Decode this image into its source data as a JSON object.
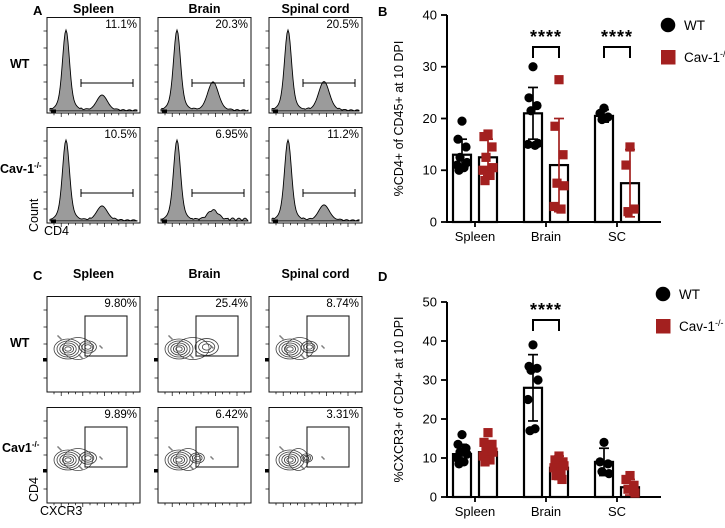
{
  "colors": {
    "wt": "#000000",
    "cav1": "#A3201F",
    "hist_fill": "#9b9b9b",
    "contour_line": "#3c3c3c"
  },
  "panel_a": {
    "label": "A",
    "col_headers": [
      "Spleen",
      "Brain",
      "Spinal cord"
    ],
    "rows": [
      {
        "name": "WT",
        "sup": "",
        "percent": [
          "11.1%",
          "20.3%",
          "20.5%"
        ]
      },
      {
        "name": "Cav-1",
        "sup": "-/-",
        "percent": [
          "10.5%",
          "6.95%",
          "11.2%"
        ]
      }
    ],
    "ylabel": "Count",
    "xlabel": "CD4"
  },
  "panel_c": {
    "label": "C",
    "col_headers": [
      "Spleen",
      "Brain",
      "Spinal cord"
    ],
    "rows": [
      {
        "name": "WT",
        "sup": "",
        "percent": [
          "9.80%",
          "25.4%",
          "8.74%"
        ]
      },
      {
        "name": "Cav1",
        "sup": "-/-",
        "percent": [
          "9.89%",
          "6.42%",
          "3.31%"
        ]
      }
    ],
    "ylabel": "CD4",
    "xlabel": "CXCR3"
  },
  "chart_data": [
    {
      "id": "B",
      "panel_label": "B",
      "type": "bar",
      "title": "",
      "xlabel": "",
      "ylabel": "%CD4+ of CD45+ at 10 DPI",
      "ylim": [
        0,
        40
      ],
      "yticks": [
        0,
        10,
        20,
        30,
        40
      ],
      "categories": [
        "Spleen",
        "Brain",
        "SC"
      ],
      "legend": [
        {
          "label": "WT",
          "sup": ""
        },
        {
          "label": "Cav-1",
          "sup": "-/-"
        }
      ],
      "series": [
        {
          "name": "WT",
          "marker": "circle",
          "color": "#000000",
          "means": [
            13,
            21,
            20.5
          ],
          "sd": [
            3,
            5,
            1.2
          ],
          "points": [
            [
              19.5,
              16,
              14.5,
              12.5,
              11.5,
              11,
              10.5,
              10
            ],
            [
              30,
              24,
              22.5,
              21.5,
              15.2,
              15,
              14.8
            ],
            [
              22,
              21,
              20.3,
              19.8
            ]
          ]
        },
        {
          "name": "Cav-1-/-",
          "marker": "square",
          "color": "#A3201F",
          "means": [
            12.5,
            11,
            7.5
          ],
          "sd": [
            3.5,
            9,
            6.5
          ],
          "points": [
            [
              17,
              16.5,
              14.5,
              12.5,
              10.5,
              10,
              9,
              8
            ],
            [
              27.5,
              18.5,
              13,
              7.5,
              7,
              3,
              2.5
            ],
            [
              14.5,
              11,
              2.5,
              2
            ]
          ]
        }
      ],
      "significance": [
        {
          "category": "Brain",
          "label": "****"
        },
        {
          "category": "SC",
          "label": "****"
        }
      ]
    },
    {
      "id": "D",
      "panel_label": "D",
      "type": "bar",
      "title": "",
      "xlabel": "",
      "ylabel": "%CXCR3+ of CD4+ at 10 DPI",
      "ylim": [
        0,
        50
      ],
      "yticks": [
        0,
        10,
        20,
        30,
        40,
        50
      ],
      "categories": [
        "Spleen",
        "Brain",
        "SC"
      ],
      "legend": [
        {
          "label": "WT",
          "sup": ""
        },
        {
          "label": "Cav-1",
          "sup": "-/-"
        }
      ],
      "series": [
        {
          "name": "WT",
          "marker": "circle",
          "color": "#000000",
          "means": [
            11,
            28,
            9
          ],
          "sd": [
            2.5,
            8.5,
            3.5
          ],
          "points": [
            [
              16,
              13.5,
              12.5,
              11.5,
              11,
              10,
              9,
              8.5
            ],
            [
              39,
              33.5,
              33,
              32.5,
              30,
              25,
              17.5,
              17
            ],
            [
              14,
              9,
              8.5,
              6.5,
              6
            ]
          ]
        },
        {
          "name": "Cav-1-/-",
          "marker": "square",
          "color": "#A3201F",
          "means": [
            11.5,
            7.5,
            2.5
          ],
          "sd": [
            2.8,
            3,
            2
          ],
          "points": [
            [
              16.5,
              14,
              13.5,
              12.5,
              11.5,
              10.5,
              9.5,
              9
            ],
            [
              10.5,
              9.5,
              9,
              8.5,
              8,
              7.5,
              6.5,
              5.5,
              4.5
            ],
            [
              5.5,
              4.5,
              3,
              2,
              1
            ]
          ]
        }
      ],
      "significance": [
        {
          "category": "Brain",
          "label": "****"
        }
      ]
    }
  ]
}
